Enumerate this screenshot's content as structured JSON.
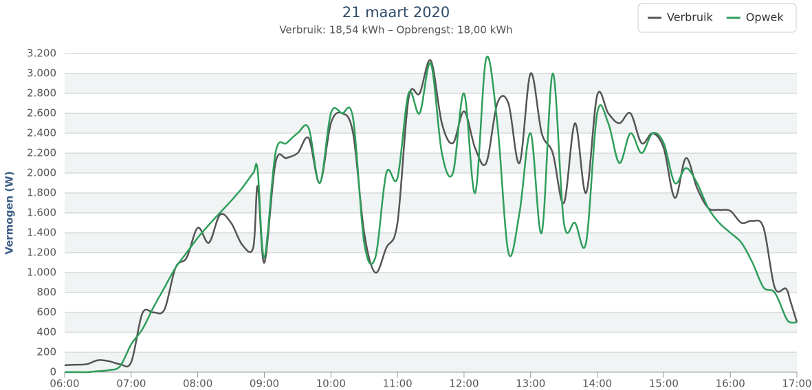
{
  "chart_data": {
    "type": "line",
    "title": "21 maart 2020",
    "subtitle": "Verbruik: 18,54 kWh – Opbrengst: 18,00 kWh",
    "y_label": "Vermogen (W)",
    "x": [
      6,
      6.167,
      6.333,
      6.5,
      6.667,
      6.833,
      7,
      7.167,
      7.333,
      7.5,
      7.667,
      7.833,
      8,
      8.167,
      8.333,
      8.5,
      8.667,
      8.833,
      8.9,
      9,
      9.167,
      9.333,
      9.5,
      9.667,
      9.833,
      10,
      10.167,
      10.333,
      10.5,
      10.667,
      10.833,
      11,
      11.167,
      11.333,
      11.5,
      11.667,
      11.833,
      12,
      12.167,
      12.333,
      12.5,
      12.667,
      12.833,
      13,
      13.167,
      13.333,
      13.5,
      13.667,
      13.833,
      14,
      14.167,
      14.333,
      14.5,
      14.667,
      14.833,
      15,
      15.167,
      15.333,
      15.5,
      15.667,
      15.833,
      16,
      16.167,
      16.333,
      16.5,
      16.667,
      16.833,
      16.9,
      17
    ],
    "series": [
      {
        "name": "Verbruik",
        "color": "#555555",
        "values": [
          70,
          75,
          80,
          120,
          110,
          80,
          100,
          590,
          600,
          630,
          1050,
          1150,
          1450,
          1300,
          1580,
          1500,
          1280,
          1250,
          1870,
          1100,
          2100,
          2150,
          2200,
          2350,
          1900,
          2500,
          2600,
          2400,
          1400,
          1000,
          1250,
          1500,
          2750,
          2800,
          3130,
          2500,
          2300,
          2620,
          2250,
          2100,
          2700,
          2700,
          2100,
          3000,
          2400,
          2200,
          1700,
          2500,
          1800,
          2780,
          2600,
          2500,
          2600,
          2300,
          2400,
          2250,
          1750,
          2150,
          1850,
          1650,
          1630,
          1620,
          1500,
          1520,
          1450,
          850,
          840,
          720,
          500
        ]
      },
      {
        "name": "Opwek",
        "color": "#2e9e5b",
        "values": [
          0,
          0,
          0,
          10,
          20,
          60,
          280,
          430,
          650,
          850,
          1050,
          1200,
          1350,
          1480,
          1600,
          1720,
          1850,
          2000,
          2030,
          1150,
          2200,
          2300,
          2400,
          2450,
          1900,
          2600,
          2600,
          2550,
          1300,
          1150,
          2000,
          1950,
          2800,
          2600,
          3100,
          2200,
          2000,
          2800,
          1800,
          3150,
          2500,
          1200,
          1600,
          2400,
          1400,
          3000,
          1500,
          1500,
          1300,
          2600,
          2500,
          2100,
          2400,
          2200,
          2400,
          2300,
          1900,
          2050,
          1900,
          1650,
          1500,
          1400,
          1300,
          1100,
          850,
          800,
          550,
          500,
          500
        ]
      }
    ],
    "xlim": [
      6,
      17
    ],
    "xticks": [
      {
        "value": 6,
        "label": "06:00"
      },
      {
        "value": 7,
        "label": "07:00"
      },
      {
        "value": 8,
        "label": "08:00"
      },
      {
        "value": 9,
        "label": "09:00"
      },
      {
        "value": 10,
        "label": "10:00"
      },
      {
        "value": 11,
        "label": "11:00"
      },
      {
        "value": 12,
        "label": "12:00"
      },
      {
        "value": 13,
        "label": "13:00"
      },
      {
        "value": 14,
        "label": "14:00"
      },
      {
        "value": 15,
        "label": "15:00"
      },
      {
        "value": 16,
        "label": "16:00"
      },
      {
        "value": 17,
        "label": "17:00"
      }
    ],
    "ylim": [
      0,
      3200
    ],
    "yticks": [
      0,
      200,
      400,
      600,
      800,
      {
        "value": 1000,
        "label": "1.000"
      },
      {
        "value": 1200,
        "label": "1.200"
      },
      {
        "value": 1400,
        "label": "1.400"
      },
      {
        "value": 1600,
        "label": "1.600"
      },
      {
        "value": 1800,
        "label": "1.800"
      },
      {
        "value": 2000,
        "label": "2.000"
      },
      {
        "value": 2200,
        "label": "2.200"
      },
      {
        "value": 2400,
        "label": "2.400"
      },
      {
        "value": 2600,
        "label": "2.600"
      },
      {
        "value": 2800,
        "label": "2.800"
      },
      {
        "value": 3000,
        "label": "3.000"
      },
      {
        "value": 3200,
        "label": "3.200"
      }
    ],
    "grid": true,
    "alternate_bands": true,
    "legend": "top-right"
  }
}
